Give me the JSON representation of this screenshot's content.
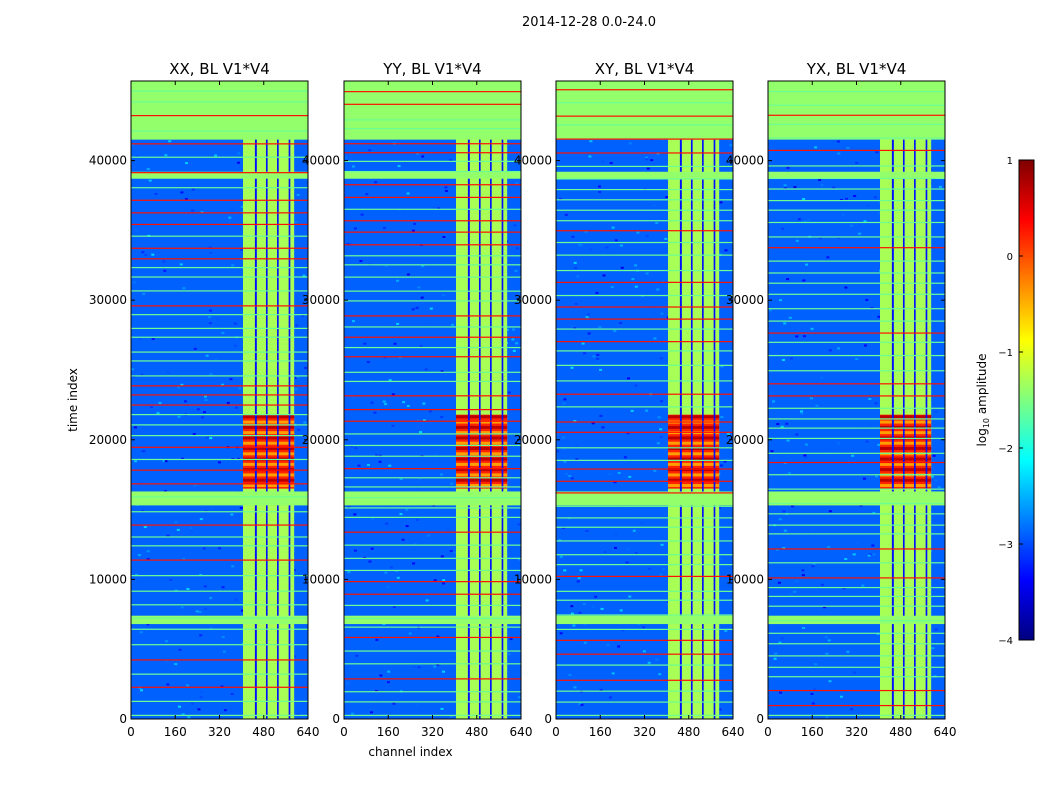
{
  "figure": {
    "suptitle": "2014-12-28 0.0-24.0",
    "xlabel": "channel index",
    "ylabel": "time index",
    "colorbar": {
      "label_prefix": "log",
      "label_sub": "10",
      "label_suffix": " amplitude",
      "range": [
        -4,
        1
      ],
      "ticks": [
        1,
        0,
        -1,
        -2,
        -3,
        -4
      ],
      "tick_labels": [
        "1",
        "0",
        "−1",
        "−2",
        "−3",
        "−4"
      ],
      "colormap": "jet",
      "stops": [
        "#00007f",
        "#0000ff",
        "#007fff",
        "#00ffff",
        "#7fff7f",
        "#ffff00",
        "#ff7f00",
        "#ff0000",
        "#7f0000"
      ]
    }
  },
  "chart_data": [
    {
      "type": "heatmap",
      "title": "XX, BL V1*V4",
      "xlabel": "channel index",
      "ylabel": "time index",
      "xlim": [
        0,
        640
      ],
      "ylim": [
        0,
        45700
      ],
      "xticks": [
        0,
        160,
        320,
        480,
        640
      ],
      "yticks": [
        0,
        10000,
        20000,
        30000,
        40000
      ],
      "show_ylabel": true,
      "show_xlabel": false
    },
    {
      "type": "heatmap",
      "title": "YY, BL V1*V4",
      "xlabel": "channel index",
      "ylabel": "time index",
      "xlim": [
        0,
        640
      ],
      "ylim": [
        0,
        45700
      ],
      "xticks": [
        0,
        160,
        320,
        480,
        640
      ],
      "yticks": [
        0,
        10000,
        20000,
        30000,
        40000
      ],
      "show_ylabel": false,
      "show_xlabel": true
    },
    {
      "type": "heatmap",
      "title": "XY, BL V1*V4",
      "xlabel": "channel index",
      "ylabel": "time index",
      "xlim": [
        0,
        640
      ],
      "ylim": [
        0,
        45700
      ],
      "xticks": [
        0,
        160,
        320,
        480,
        640
      ],
      "yticks": [
        0,
        10000,
        20000,
        30000,
        40000
      ],
      "show_ylabel": false,
      "show_xlabel": false
    },
    {
      "type": "heatmap",
      "title": "YX, BL V1*V4",
      "xlabel": "channel index",
      "ylabel": "time index",
      "xlim": [
        0,
        640
      ],
      "ylim": [
        0,
        45700
      ],
      "xticks": [
        0,
        160,
        320,
        480,
        640
      ],
      "yticks": [
        0,
        10000,
        20000,
        30000,
        40000
      ],
      "show_ylabel": false,
      "show_xlabel": false
    }
  ],
  "heatmap_features": {
    "background_log_amp": -2.9,
    "bright_channel_band": [
      405,
      590
    ],
    "bright_band_log_amp": -1.3,
    "dark_gap_channels": [
      [
        448,
        455
      ],
      [
        488,
        494
      ],
      [
        528,
        534
      ],
      [
        570,
        576
      ]
    ],
    "hot_time_range": [
      16500,
      21800
    ],
    "hot_log_amp": 0.2,
    "saturated_time_ranges": [
      [
        41500,
        45700
      ],
      [
        38700,
        39200
      ],
      [
        15300,
        16300
      ],
      [
        6800,
        7400
      ]
    ],
    "saturated_log_amp": -1.4
  }
}
